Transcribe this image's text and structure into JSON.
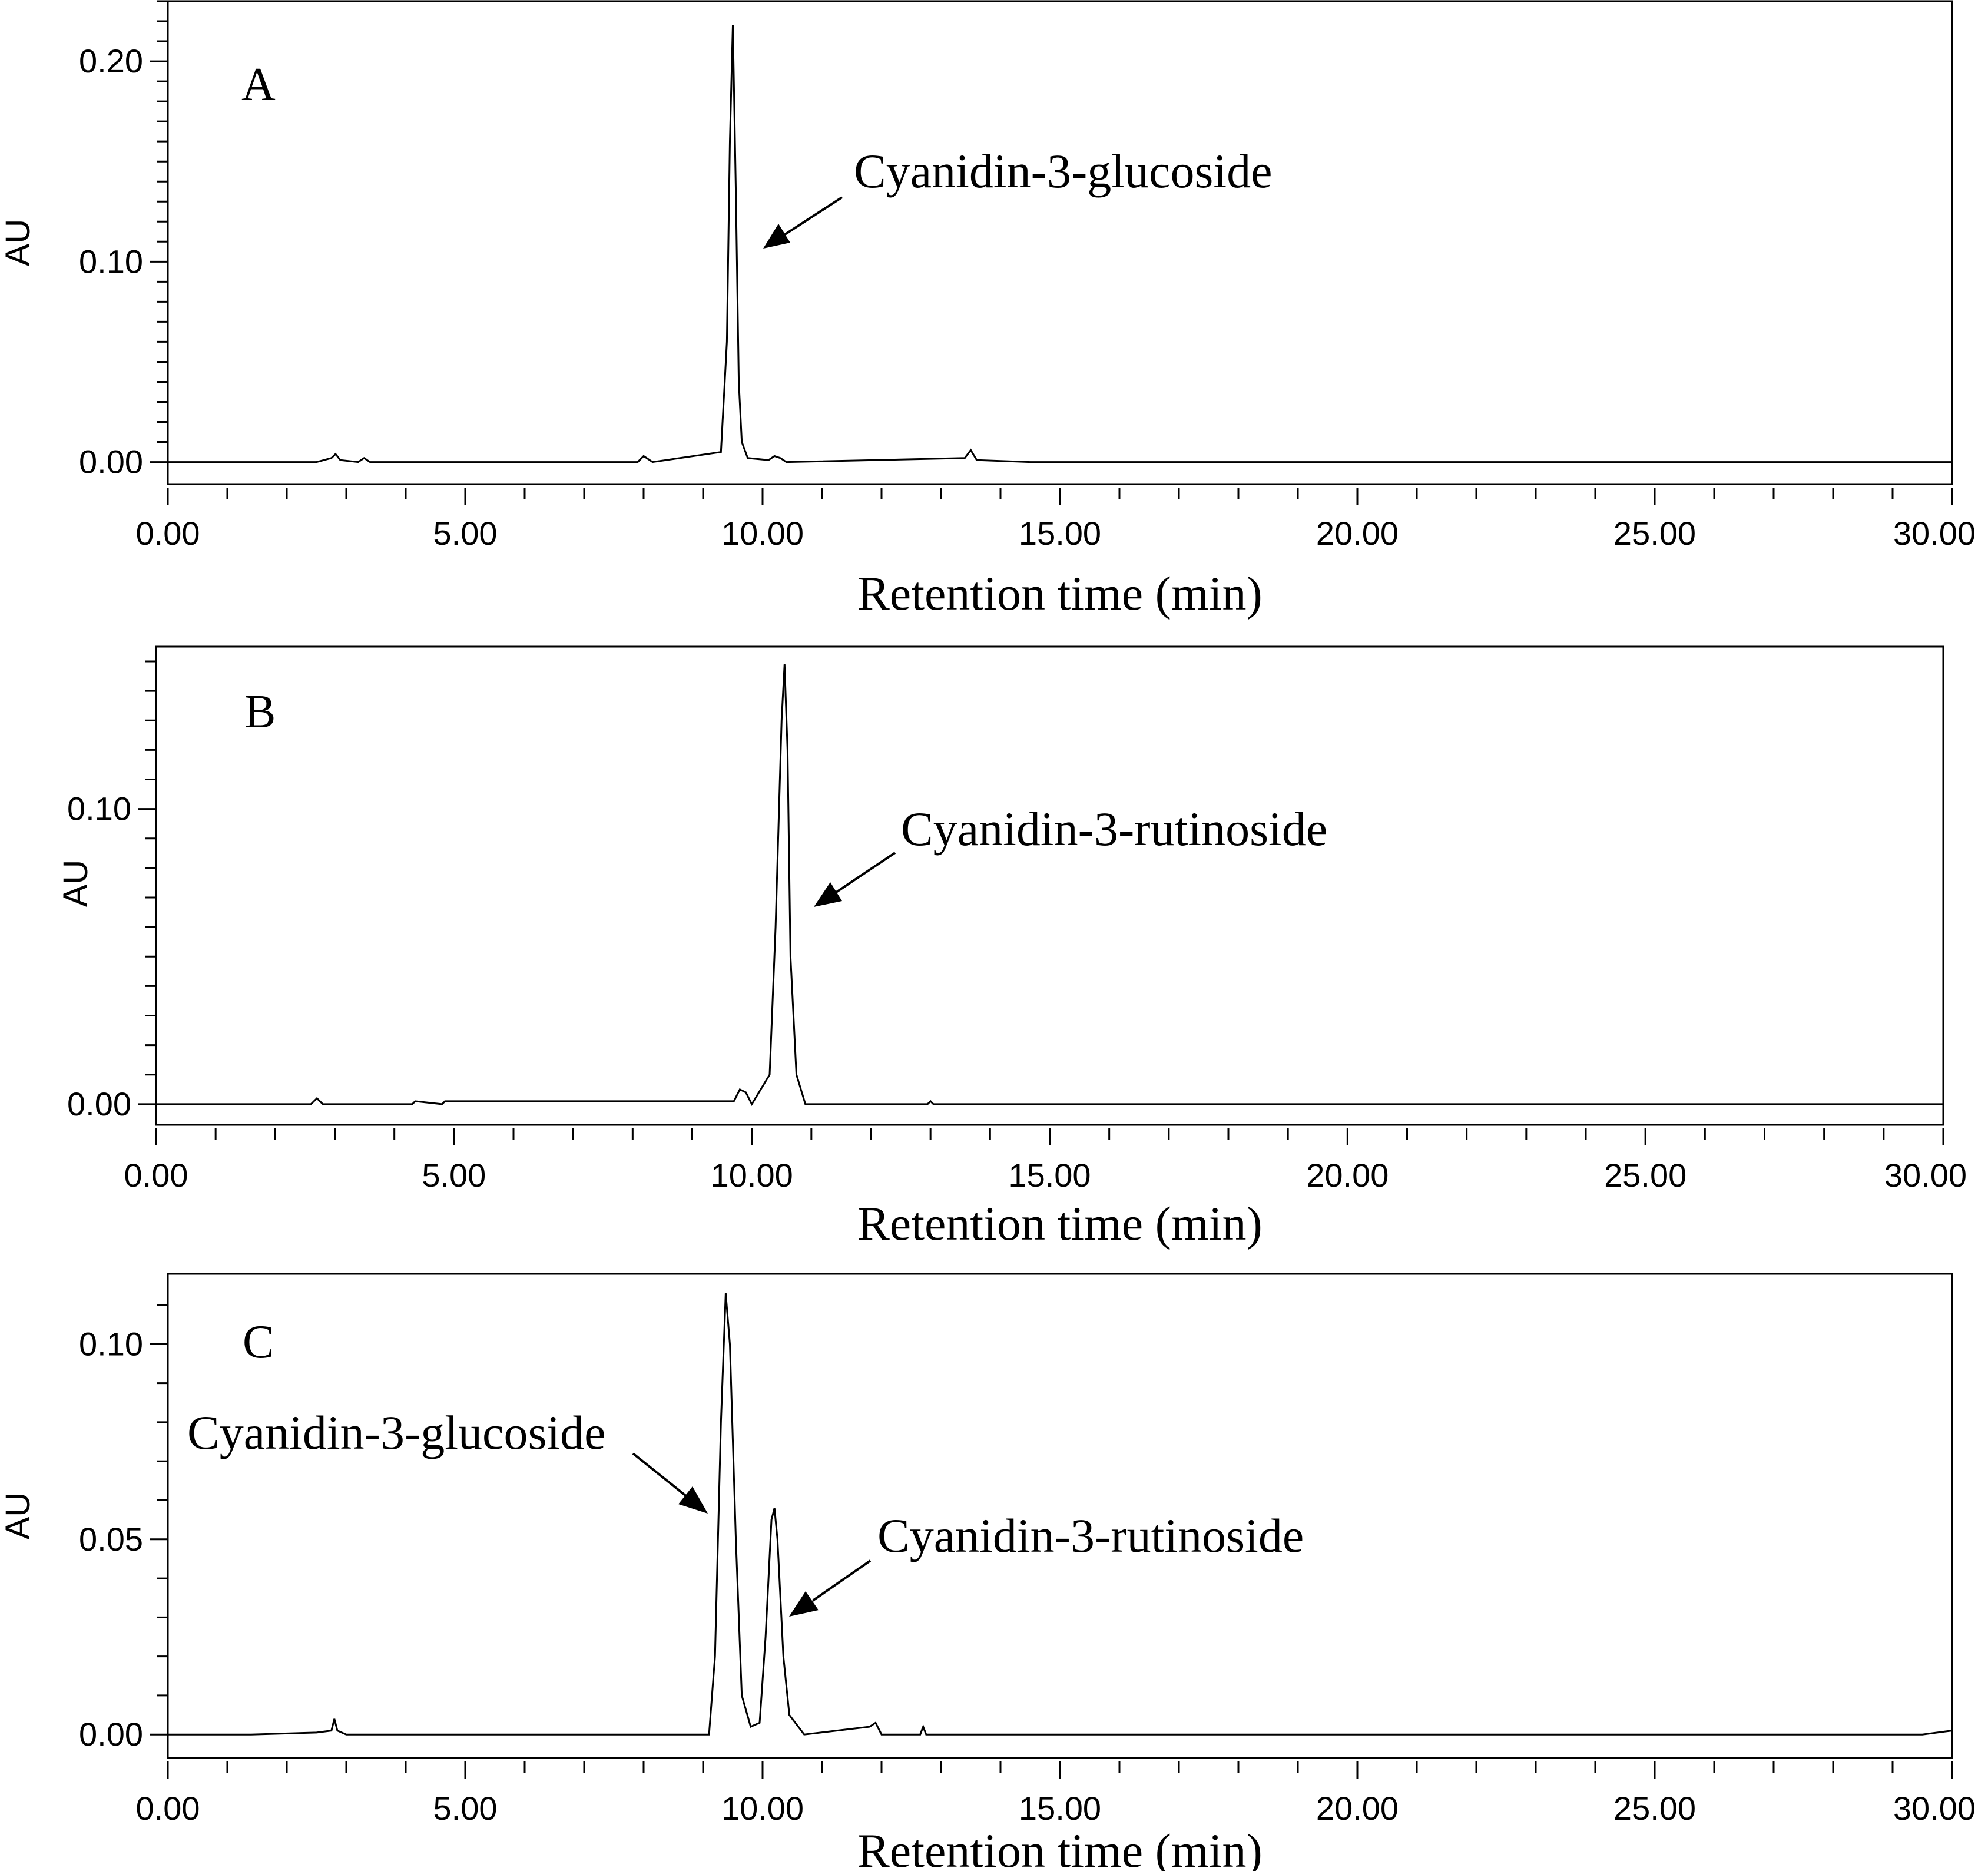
{
  "chart_data": [
    {
      "type": "line",
      "panel_label": "A",
      "xlabel": "Retention time (min)",
      "ylabel": "AU",
      "xlim": [
        0,
        30
      ],
      "ylim": [
        -0.011,
        0.23
      ],
      "x_ticks": [
        "0.00",
        "5.00",
        "10.00",
        "15.00",
        "20.00",
        "25.00",
        "30.00"
      ],
      "y_ticks": [
        "0.00",
        "0.10",
        "0.20"
      ],
      "y_tick_values": [
        0.0,
        0.1,
        0.2
      ],
      "series": [
        {
          "x": [
            0,
            2.5,
            2.75,
            2.82,
            2.9,
            3.2,
            3.3,
            3.4,
            7.9,
            8.0,
            8.05,
            8.15,
            9.3,
            9.4,
            9.45,
            9.5,
            9.55,
            9.6,
            9.65,
            9.75,
            10.1,
            10.2,
            10.3,
            10.4,
            13.4,
            13.5,
            13.6,
            14.5,
            30
          ],
          "y": [
            0,
            0,
            0.002,
            0.004,
            0.001,
            0,
            0.002,
            0,
            0,
            0.003,
            0.002,
            0,
            0.005,
            0.06,
            0.16,
            0.218,
            0.135,
            0.04,
            0.01,
            0.002,
            0.001,
            0.003,
            0.002,
            0,
            0.002,
            0.006,
            0.001,
            0,
            0
          ]
        }
      ],
      "annotations": [
        {
          "text": "Cyanidin-3-glucoside",
          "x": 9.6,
          "y": 0.105
        }
      ]
    },
    {
      "type": "line",
      "panel_label": "B",
      "xlabel": "Retention time (min)",
      "ylabel": "AU",
      "xlim": [
        0,
        30
      ],
      "ylim": [
        -0.007,
        0.155
      ],
      "x_ticks": [
        "0.00",
        "5.00",
        "10.00",
        "15.00",
        "20.00",
        "25.00",
        "30.00"
      ],
      "y_ticks": [
        "0.00",
        "0.10"
      ],
      "y_tick_values": [
        0.0,
        0.1
      ],
      "series": [
        {
          "x": [
            0,
            2.6,
            2.7,
            2.8,
            4.3,
            4.35,
            4.8,
            4.85,
            9.7,
            9.8,
            9.9,
            10.0,
            10.3,
            10.4,
            10.5,
            10.55,
            10.6,
            10.65,
            10.75,
            10.9,
            12.95,
            13.0,
            13.05,
            30
          ],
          "y": [
            0,
            0,
            0.002,
            0,
            0,
            0.001,
            0,
            0.001,
            0.001,
            0.005,
            0.004,
            0,
            0.01,
            0.06,
            0.13,
            0.149,
            0.12,
            0.05,
            0.01,
            0,
            0,
            0.001,
            0,
            0
          ]
        }
      ],
      "annotations": [
        {
          "text": "Cyanidin-3-rutinoside",
          "x": 11.1,
          "y": 0.066
        }
      ]
    },
    {
      "type": "line",
      "panel_label": "C",
      "xlabel": "Retention time (min)",
      "ylabel": "AU",
      "xlim": [
        0,
        30
      ],
      "ylim": [
        -0.006,
        0.118
      ],
      "x_ticks": [
        "0.00",
        "5.00",
        "10.00",
        "15.00",
        "20.00",
        "25.00",
        "30.00"
      ],
      "y_ticks": [
        "0.00",
        "0.05",
        "0.10"
      ],
      "y_tick_values": [
        0.0,
        0.05,
        0.1
      ],
      "series": [
        {
          "x": [
            0,
            1.4,
            2.5,
            2.75,
            2.8,
            2.85,
            3.0,
            9.1,
            9.2,
            9.3,
            9.38,
            9.45,
            9.55,
            9.65,
            9.8,
            9.95,
            10.05,
            10.15,
            10.2,
            10.25,
            10.35,
            10.45,
            10.7,
            11.8,
            11.9,
            12.0,
            12.65,
            12.7,
            12.75,
            15.0,
            29.5,
            30
          ],
          "y": [
            0,
            0,
            0.0005,
            0.001,
            0.004,
            0.001,
            0,
            0,
            0.02,
            0.08,
            0.113,
            0.1,
            0.05,
            0.01,
            0.002,
            0.003,
            0.025,
            0.055,
            0.058,
            0.05,
            0.02,
            0.005,
            0,
            0.002,
            0.003,
            0,
            0,
            0.002,
            0,
            0,
            0,
            0.001
          ]
        }
      ],
      "annotations": [
        {
          "text": "Cyanidin-3-glucoside",
          "x": 9.2,
          "y": 0.059
        },
        {
          "text": "Cyanidin-3-rutinoside",
          "x": 10.5,
          "y": 0.031
        }
      ]
    }
  ]
}
